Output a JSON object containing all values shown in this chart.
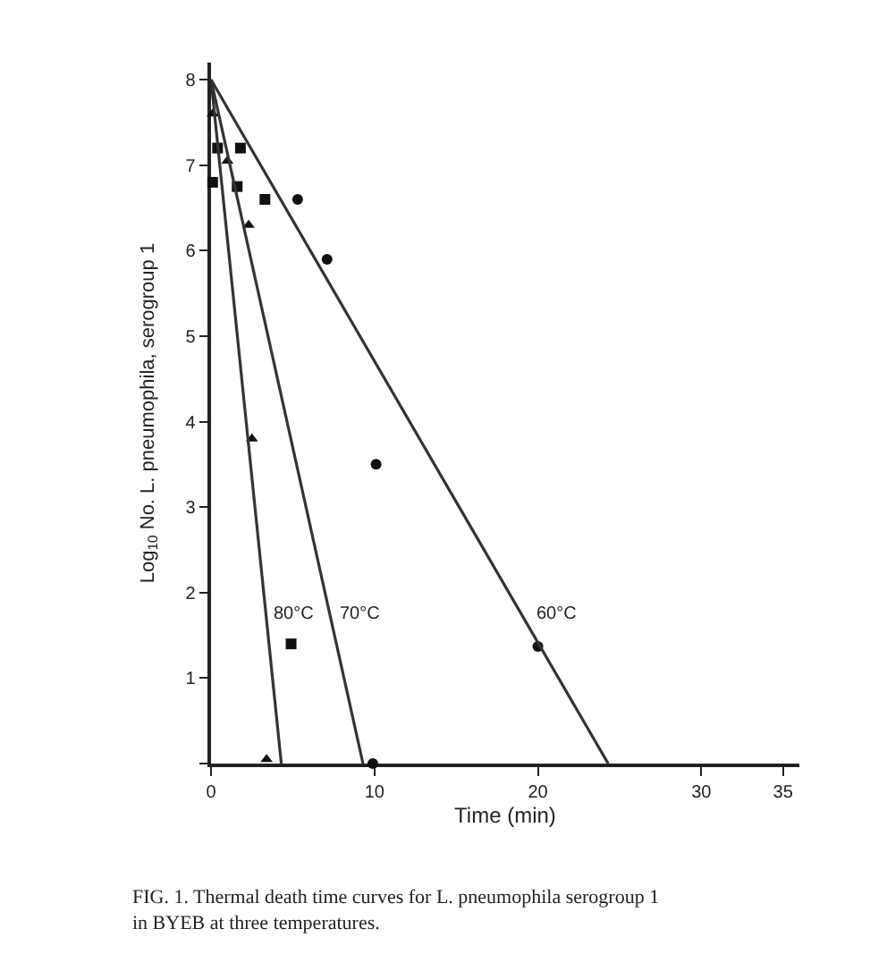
{
  "chart_data": {
    "type": "scatter",
    "xlabel": "Time (min)",
    "ylabel": "Log$_{10}$ No. L. pneumophila, serogroup 1",
    "xlim": [
      0,
      36
    ],
    "xticks": [
      0,
      10,
      20,
      30,
      35
    ],
    "ylim": [
      0,
      8.2
    ],
    "yticks": [
      {
        "value": 0,
        "label": null
      },
      1,
      2,
      3,
      4,
      5,
      6,
      7,
      8
    ],
    "series": [
      {
        "color": "#111111",
        "marker": "triangle",
        "x": [
          0.1,
          1.0,
          2.3,
          2.5,
          3.4
        ],
        "values": [
          7.6,
          7.05,
          6.3,
          3.8,
          0.05
        ]
      },
      {
        "color": "#111111",
        "marker": "square",
        "x": [
          0.1,
          0.4,
          1.6,
          1.8,
          3.3,
          4.9
        ],
        "values": [
          6.8,
          7.2,
          6.75,
          7.2,
          6.6,
          1.4
        ]
      },
      {
        "color": "#111111",
        "marker": "circle",
        "x": [
          5.3,
          7.1,
          10.1,
          20,
          9.9
        ],
        "values": [
          6.6,
          5.9,
          3.5,
          1.37,
          0
        ]
      },
      {
        "type": "line",
        "name": "80°C",
        "color": "#333333",
        "marker": "none",
        "x": [
          0,
          4.3
        ],
        "values": [
          8,
          0
        ]
      },
      {
        "type": "line",
        "name": "70°C",
        "color": "#333333",
        "marker": "none",
        "x": [
          0,
          9.3
        ],
        "values": [
          8,
          0
        ]
      },
      {
        "type": "line",
        "name": "60°C",
        "color": "#333333",
        "marker": "none",
        "x": [
          0,
          24.3
        ],
        "values": [
          8,
          0
        ]
      }
    ],
    "annotations": [
      "FIG. 1. Thermal death time curves for L. pneumophila serogroup 1 in BYEB at three temperatures."
    ]
  }
}
